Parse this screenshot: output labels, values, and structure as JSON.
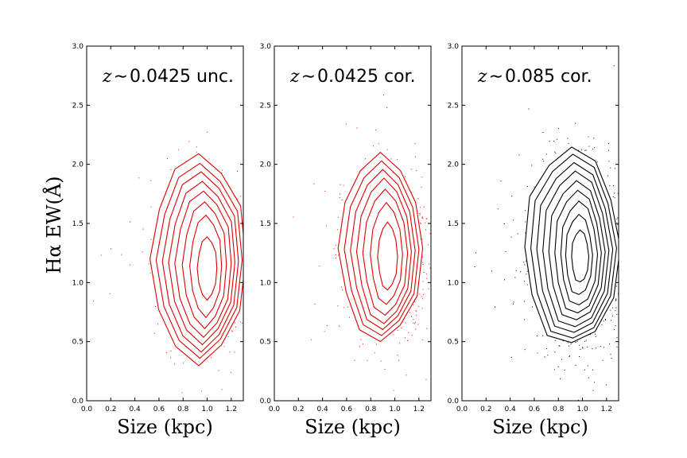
{
  "figure": {
    "ylabel": "Hα EW(Å)"
  },
  "chart_data": [
    {
      "type": "scatter",
      "title": "z ∼ 0.0425 unc.",
      "title_var": "z",
      "title_sym": "∼",
      "title_rest": "0.0425 unc.",
      "xlabel": "Size (kpc)",
      "ylabel": "Hα EW(Å)",
      "xlim": [
        0.0,
        1.3
      ],
      "ylim": [
        0.0,
        3.0
      ],
      "xticks": [
        "0.0",
        "0.2",
        "0.4",
        "0.6",
        "0.8",
        "1.0",
        "1.2"
      ],
      "yticks": [
        "0.0",
        "0.5",
        "1.0",
        "1.5",
        "2.0",
        "2.5",
        "3.0"
      ],
      "grid": false,
      "color": "#ff0000",
      "contour_color": "#dd0000",
      "center": [
        1.0,
        1.12
      ],
      "spread": [
        0.19,
        0.31
      ],
      "contour_levels": [
        {
          "rx": 0.08,
          "ry": 0.26,
          "dx": 0.0,
          "dy": 0.0
        },
        {
          "rx": 0.13,
          "ry": 0.42,
          "dx": -0.01,
          "dy": 0.02
        },
        {
          "rx": 0.18,
          "ry": 0.52,
          "dx": -0.02,
          "dy": 0.03
        },
        {
          "rx": 0.23,
          "ry": 0.6,
          "dx": -0.03,
          "dy": 0.04
        },
        {
          "rx": 0.27,
          "ry": 0.67,
          "dx": -0.04,
          "dy": 0.05
        },
        {
          "rx": 0.31,
          "ry": 0.74,
          "dx": -0.05,
          "dy": 0.06
        },
        {
          "rx": 0.35,
          "ry": 0.8,
          "dx": -0.06,
          "dy": 0.07
        },
        {
          "rx": 0.39,
          "ry": 0.87,
          "dx": -0.07,
          "dy": 0.08
        }
      ]
    },
    {
      "type": "scatter",
      "title": "z ∼ 0.0425 cor.",
      "title_var": "z",
      "title_sym": "∼",
      "title_rest": "0.0425 cor.",
      "xlabel": "Size (kpc)",
      "ylabel": "",
      "xlim": [
        0.0,
        1.3
      ],
      "ylim": [
        0.0,
        3.0
      ],
      "xticks": [
        "0.0",
        "0.2",
        "0.4",
        "0.6",
        "0.8",
        "1.0",
        "1.2"
      ],
      "yticks": [
        "0.0",
        "0.5",
        "1.0",
        "1.5",
        "2.0",
        "2.5",
        "3.0"
      ],
      "grid": false,
      "color": "#ff0000",
      "contour_color": "#dd0000",
      "center": [
        0.94,
        1.22
      ],
      "spread": [
        0.17,
        0.33
      ],
      "contour_levels": [
        {
          "rx": 0.08,
          "ry": 0.28,
          "dx": 0.0,
          "dy": 0.0
        },
        {
          "rx": 0.13,
          "ry": 0.42,
          "dx": -0.01,
          "dy": 0.02
        },
        {
          "rx": 0.18,
          "ry": 0.52,
          "dx": -0.02,
          "dy": 0.03
        },
        {
          "rx": 0.22,
          "ry": 0.6,
          "dx": -0.03,
          "dy": 0.04
        },
        {
          "rx": 0.26,
          "ry": 0.66,
          "dx": -0.04,
          "dy": 0.05
        },
        {
          "rx": 0.3,
          "ry": 0.72,
          "dx": -0.05,
          "dy": 0.06
        },
        {
          "rx": 0.34,
          "ry": 0.78,
          "dx": -0.06,
          "dy": 0.07
        }
      ]
    },
    {
      "type": "scatter",
      "title": "z ∼ 0.085 cor.",
      "title_var": "z",
      "title_sym": "∼",
      "title_rest": "0.085 cor.",
      "xlabel": "Size (kpc)",
      "ylabel": "",
      "xlim": [
        0.0,
        1.3
      ],
      "ylim": [
        0.0,
        3.0
      ],
      "xticks": [
        "0.0",
        "0.2",
        "0.4",
        "0.6",
        "0.8",
        "1.0",
        "1.2"
      ],
      "yticks": [
        "0.0",
        "0.5",
        "1.0",
        "1.5",
        "2.0",
        "2.5",
        "3.0"
      ],
      "grid": false,
      "color": "#000000",
      "contour_color": "#000000",
      "center": [
        0.98,
        1.22
      ],
      "spread": [
        0.19,
        0.36
      ],
      "contour_levels": [
        {
          "rx": 0.07,
          "ry": 0.22,
          "dx": 0.0,
          "dy": 0.0
        },
        {
          "rx": 0.11,
          "ry": 0.34,
          "dx": -0.01,
          "dy": 0.01
        },
        {
          "rx": 0.15,
          "ry": 0.44,
          "dx": -0.01,
          "dy": 0.02
        },
        {
          "rx": 0.19,
          "ry": 0.52,
          "dx": -0.02,
          "dy": 0.03
        },
        {
          "rx": 0.23,
          "ry": 0.59,
          "dx": -0.03,
          "dy": 0.04
        },
        {
          "rx": 0.27,
          "ry": 0.66,
          "dx": -0.04,
          "dy": 0.05
        },
        {
          "rx": 0.31,
          "ry": 0.72,
          "dx": -0.05,
          "dy": 0.06
        },
        {
          "rx": 0.35,
          "ry": 0.78,
          "dx": -0.06,
          "dy": 0.07
        },
        {
          "rx": 0.39,
          "ry": 0.83,
          "dx": -0.07,
          "dy": 0.08
        }
      ]
    }
  ]
}
